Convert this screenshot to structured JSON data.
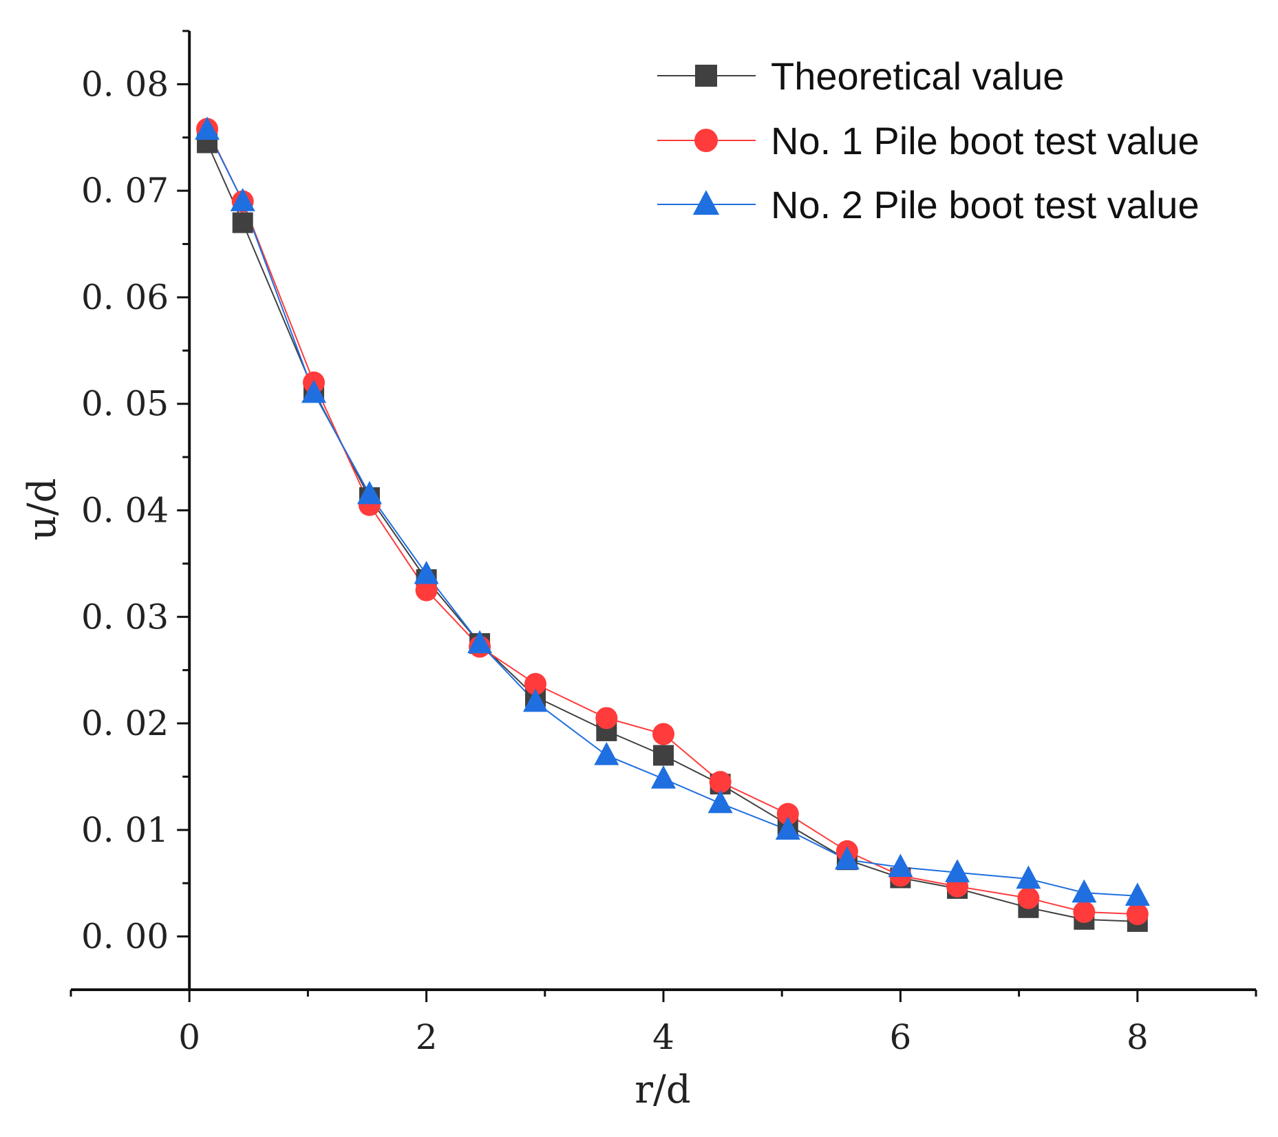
{
  "chart_data": {
    "type": "line",
    "xlabel": "r/d",
    "ylabel": "u/d",
    "xlim": [
      -1,
      9
    ],
    "ylim": [
      -0.005,
      0.085
    ],
    "xticks": [
      0,
      2,
      4,
      6,
      8
    ],
    "xtick_labels": [
      "0",
      "2",
      "4",
      "6",
      "8"
    ],
    "yticks": [
      0.0,
      0.01,
      0.02,
      0.03,
      0.04,
      0.05,
      0.06,
      0.07,
      0.08
    ],
    "ytick_labels": [
      "0. 00",
      "0. 01",
      "0. 02",
      "0. 03",
      "0. 04",
      "0. 05",
      "0. 06",
      "0. 07",
      "0. 08"
    ],
    "grid": false,
    "legend_position": "top-right",
    "series": [
      {
        "name": "Theoretical value",
        "marker": "square",
        "color": "#404040",
        "x": [
          0.15,
          0.45,
          1.05,
          1.52,
          2.0,
          2.45,
          2.92,
          3.52,
          4.0,
          4.48,
          5.05,
          5.55,
          6.0,
          6.48,
          7.08,
          7.55,
          8.0
        ],
        "y": [
          0.0745,
          0.067,
          0.0512,
          0.0412,
          0.0335,
          0.0275,
          0.0225,
          0.0193,
          0.017,
          0.0143,
          0.0105,
          0.0072,
          0.0055,
          0.0045,
          0.0027,
          0.0016,
          0.0014
        ]
      },
      {
        "name": "No. 1 Pile boot test value",
        "marker": "circle",
        "color": "#ff3b3b",
        "x": [
          0.15,
          0.45,
          1.05,
          1.52,
          2.0,
          2.45,
          2.92,
          3.52,
          4.0,
          4.48,
          5.05,
          5.55,
          6.0,
          6.48,
          7.08,
          7.55,
          8.0
        ],
        "y": [
          0.0758,
          0.069,
          0.052,
          0.0405,
          0.0325,
          0.0272,
          0.0237,
          0.0205,
          0.019,
          0.0145,
          0.0115,
          0.008,
          0.0057,
          0.0047,
          0.0036,
          0.0023,
          0.0021
        ]
      },
      {
        "name": "No. 2 Pile boot test value",
        "marker": "triangle",
        "color": "#1f6fe0",
        "x": [
          0.15,
          0.45,
          1.05,
          1.52,
          2.0,
          2.45,
          2.92,
          3.52,
          4.0,
          4.48,
          5.05,
          5.55,
          6.0,
          6.48,
          7.08,
          7.55,
          8.0
        ],
        "y": [
          0.0757,
          0.069,
          0.051,
          0.0415,
          0.034,
          0.0275,
          0.022,
          0.017,
          0.0148,
          0.0125,
          0.01,
          0.0072,
          0.0065,
          0.006,
          0.0054,
          0.0041,
          0.0038
        ]
      }
    ]
  }
}
